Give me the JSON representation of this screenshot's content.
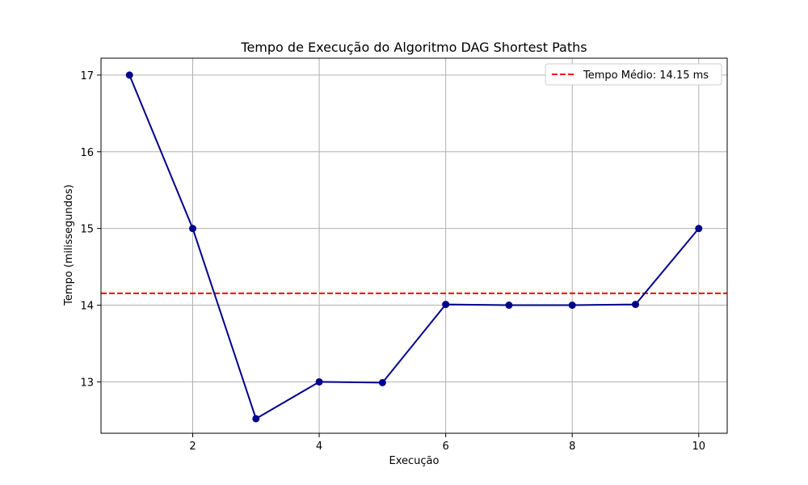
{
  "chart_data": {
    "type": "line",
    "title": "Tempo de Execução do Algoritmo DAG Shortest Paths",
    "xlabel": "Execução",
    "ylabel": "Tempo (milissegundos)",
    "x": [
      1,
      2,
      3,
      4,
      5,
      6,
      7,
      8,
      9,
      10
    ],
    "series": [
      {
        "values": [
          17.0,
          15.0,
          12.52,
          13.0,
          12.99,
          14.01,
          14.0,
          14.0,
          14.01,
          15.0
        ],
        "color": "#00008b"
      }
    ],
    "reference_lines": [
      {
        "name": "Tempo Médio: 14.15 ms",
        "y": 14.155,
        "color": "#ff0000",
        "style": "dashed"
      }
    ],
    "xlim": [
      0.55,
      10.45
    ],
    "ylim": [
      12.33,
      17.22
    ],
    "xticks": [
      2,
      4,
      6,
      8,
      10
    ],
    "xtick_labels": [
      "2",
      "4",
      "6",
      "8",
      "10"
    ],
    "yticks": [
      13,
      14,
      15,
      16,
      17
    ],
    "ytick_labels": [
      "13",
      "14",
      "15",
      "16",
      "17"
    ],
    "grid": true,
    "legend_position": "top-right"
  }
}
